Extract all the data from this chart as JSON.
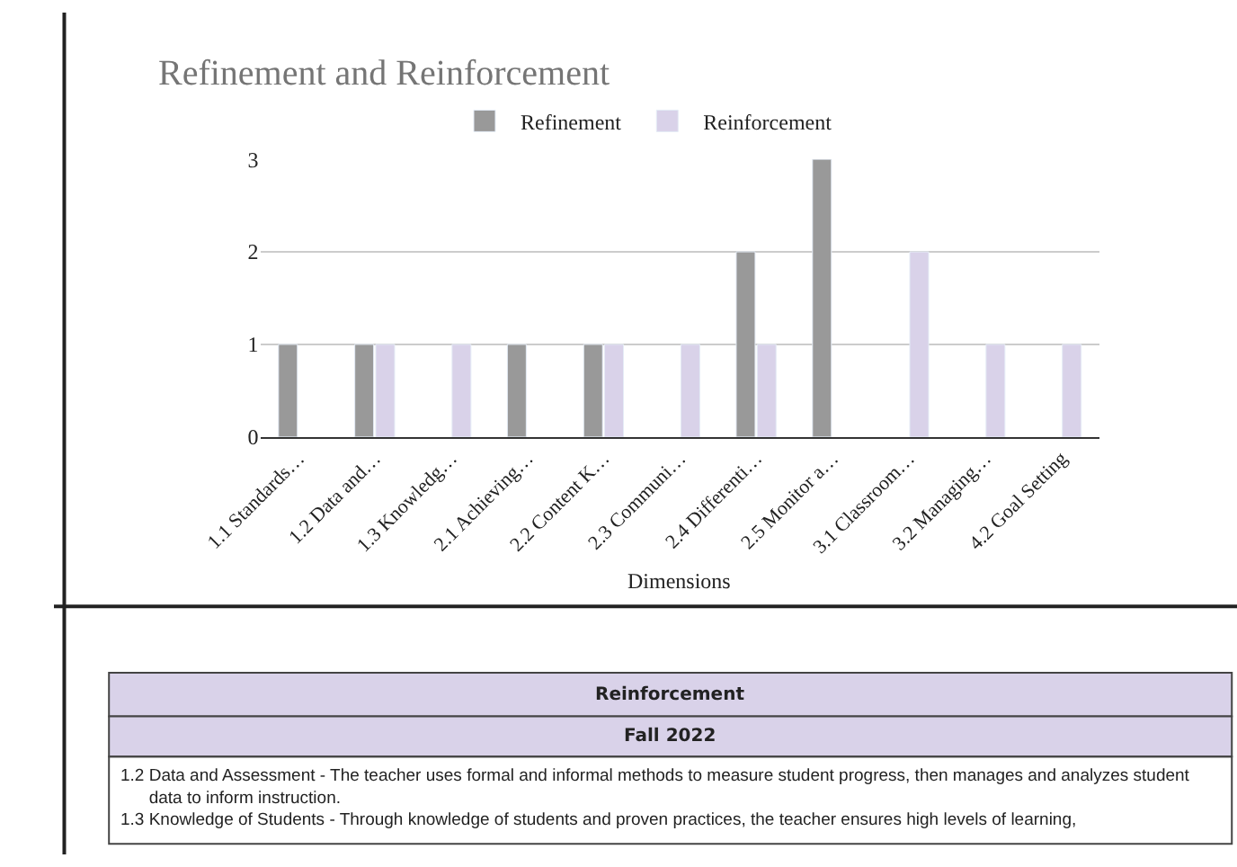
{
  "chart_data": {
    "type": "bar",
    "title": "Refinement and Reinforcement",
    "xlabel": "Dimensions",
    "categories": [
      "1.1 Standards…",
      "1.2 Data and…",
      "1.3 Knowledg…",
      "2.1 Achieving…",
      "2.2 Content K…",
      "2.3 Communi…",
      "2.4 Differenti…",
      "2.5 Monitor a…",
      "3.1 Classroom…",
      "3.2 Managing…",
      "4.2 Goal Setting"
    ],
    "series": [
      {
        "name": "Refinement",
        "color": "#999999",
        "values": [
          1,
          1,
          null,
          1,
          1,
          null,
          2,
          3,
          null,
          null,
          null
        ]
      },
      {
        "name": "Reinforcement",
        "color": "#d9d2e9",
        "values": [
          null,
          1,
          1,
          null,
          1,
          1,
          1,
          null,
          2,
          1,
          1
        ]
      }
    ],
    "ylim": [
      0,
      3
    ],
    "yticks": [
      0,
      1,
      2,
      3
    ],
    "grid": "y",
    "legend": "top",
    "annotations": [
      "Reinforcement",
      "Fall 2022",
      "1.2 Data and Assessment - The teacher uses formal and informal methods to measure student progress, then manages and analyzes student data to inform instruction.",
      "1.3 Knowledge of Students - Through knowledge of students and proven practices, the teacher ensures high levels of learning,"
    ]
  }
}
